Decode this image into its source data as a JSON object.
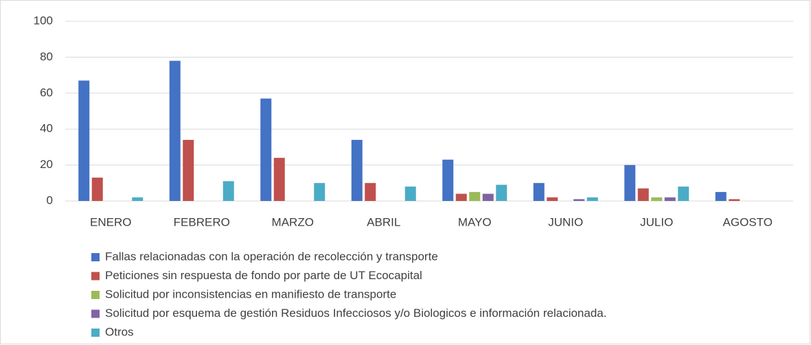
{
  "chart_data": {
    "type": "bar",
    "categories": [
      "ENERO",
      "FEBRERO",
      "MARZO",
      "ABRIL",
      "MAYO",
      "JUNIO",
      "JULIO",
      "AGOSTO"
    ],
    "series": [
      {
        "name": "Fallas relacionadas con la operación de recolección y transporte",
        "color": "#4472c4",
        "values": [
          67,
          78,
          57,
          34,
          23,
          10,
          20,
          5
        ]
      },
      {
        "name": "Peticiones sin respuesta de fondo por parte de UT Ecocapital",
        "color": "#c0504d",
        "values": [
          13,
          34,
          24,
          10,
          4,
          2,
          7,
          1
        ]
      },
      {
        "name": "Solicitud por inconsistencias en manifiesto de transporte",
        "color": "#9bbb59",
        "values": [
          0,
          0,
          0,
          0,
          5,
          0,
          2,
          0
        ]
      },
      {
        "name": "Solicitud por esquema de gestión Residuos Infecciosos y/o Biologicos e información relacionada.",
        "color": "#8064a2",
        "values": [
          0,
          0,
          0,
          0,
          4,
          1,
          2,
          0
        ]
      },
      {
        "name": "Otros",
        "color": "#4bacc6",
        "values": [
          2,
          11,
          10,
          8,
          9,
          2,
          8,
          0
        ]
      }
    ],
    "ylim": [
      0,
      100
    ],
    "yticks": [
      0,
      20,
      40,
      60,
      80,
      100
    ],
    "grid": true,
    "legend": "bottom"
  }
}
